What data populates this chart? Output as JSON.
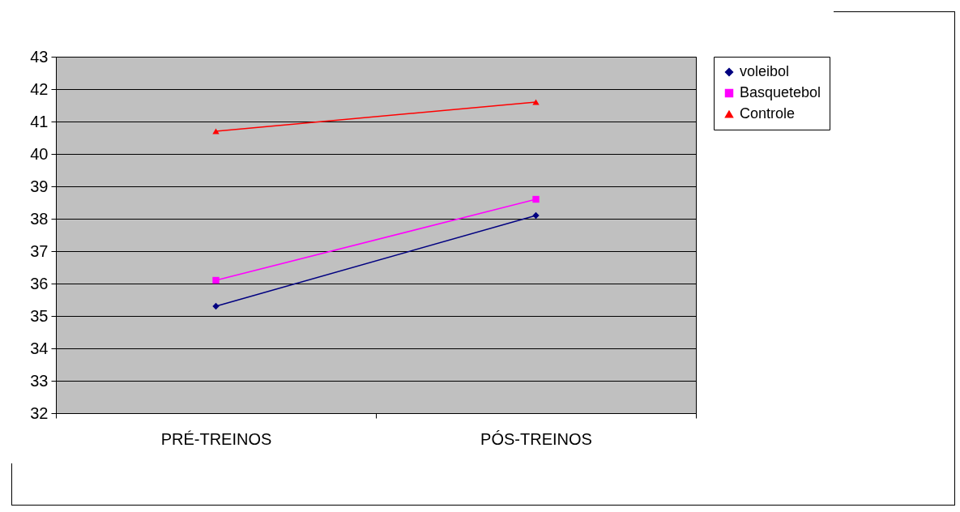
{
  "chart_data": {
    "type": "line",
    "categories": [
      "PRÉ-TREINOS",
      "PÓS-TREINOS"
    ],
    "series": [
      {
        "name": "voleibol",
        "color": "#000080",
        "marker": "diamond",
        "values": [
          35.3,
          38.1
        ]
      },
      {
        "name": "Basquetebol",
        "color": "#ff00ff",
        "marker": "square",
        "values": [
          36.1,
          38.6
        ]
      },
      {
        "name": "Controle",
        "color": "#ff0000",
        "marker": "triangle",
        "values": [
          40.7,
          41.6
        ]
      }
    ],
    "ylim": [
      32,
      43
    ],
    "yticks": [
      32,
      33,
      34,
      35,
      36,
      37,
      38,
      39,
      40,
      41,
      42,
      43
    ],
    "grid": "y",
    "legend": "right"
  }
}
